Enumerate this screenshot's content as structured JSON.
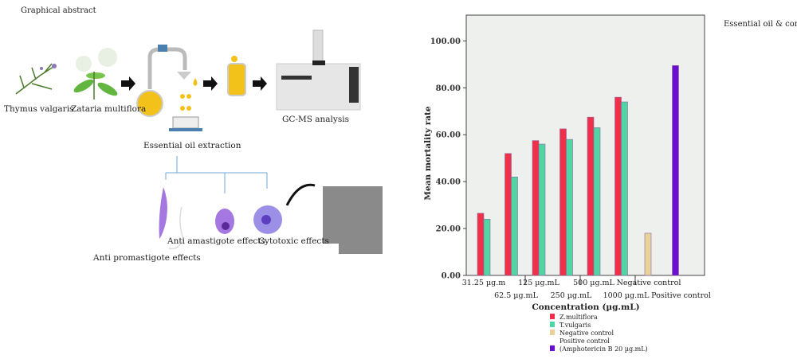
{
  "abstract": {
    "title": "Graphical abstract",
    "plants": [
      "Thymus valgaris",
      "Zataria multiflora"
    ],
    "extraction_label": "Essential oil extraction",
    "gcms_label": "GC-MS analysis",
    "effects": [
      "Anti promastigote effects",
      "Anti amastigote effects",
      "Cytotoxic effects"
    ]
  },
  "colors": {
    "z_multiflora": "#f0304a",
    "t_vulgaris": "#4fd6a4",
    "negative_control": "#e8d29a",
    "positive_control": "#6a0fd0",
    "plot_bg": "#eef0ee"
  },
  "chart_data": {
    "type": "bar",
    "xlabel": "Concentration (µg.mL)",
    "ylabel": "Mean mortality rate",
    "legend_title": "Essential oil & control group",
    "ylim": [
      0,
      111
    ],
    "yticks": [
      "0.00",
      "20.00",
      "40.00",
      "60.00",
      "80.00",
      "100.00"
    ],
    "grid": false,
    "legend_placement": "bottom",
    "categories": [
      "31.25 µg.m",
      "62.5 µg.mL",
      "125 µg.mL",
      "250 µg.mL",
      "500 µg.mL",
      "1000 µg.mL",
      "Negative control",
      "Positive control"
    ],
    "series": [
      {
        "name": "Z.multiflora",
        "values": [
          26.5,
          52,
          57.5,
          62.5,
          67.5,
          76,
          null,
          null
        ]
      },
      {
        "name": "T.vulgaris",
        "values": [
          24,
          42,
          56,
          58,
          63,
          74,
          null,
          null
        ]
      },
      {
        "name": "Negative control",
        "values": [
          null,
          null,
          null,
          null,
          null,
          null,
          18,
          null
        ]
      },
      {
        "name": "Positive control (Amphotericin B 20 µg.mL)",
        "values": [
          null,
          null,
          null,
          null,
          null,
          null,
          null,
          89.5
        ]
      }
    ],
    "legend": [
      "Z.multiflora",
      "T.vulgaris",
      "Negative control",
      "Positive control",
      "(Amphotericin B 20 µg.mL)"
    ]
  }
}
